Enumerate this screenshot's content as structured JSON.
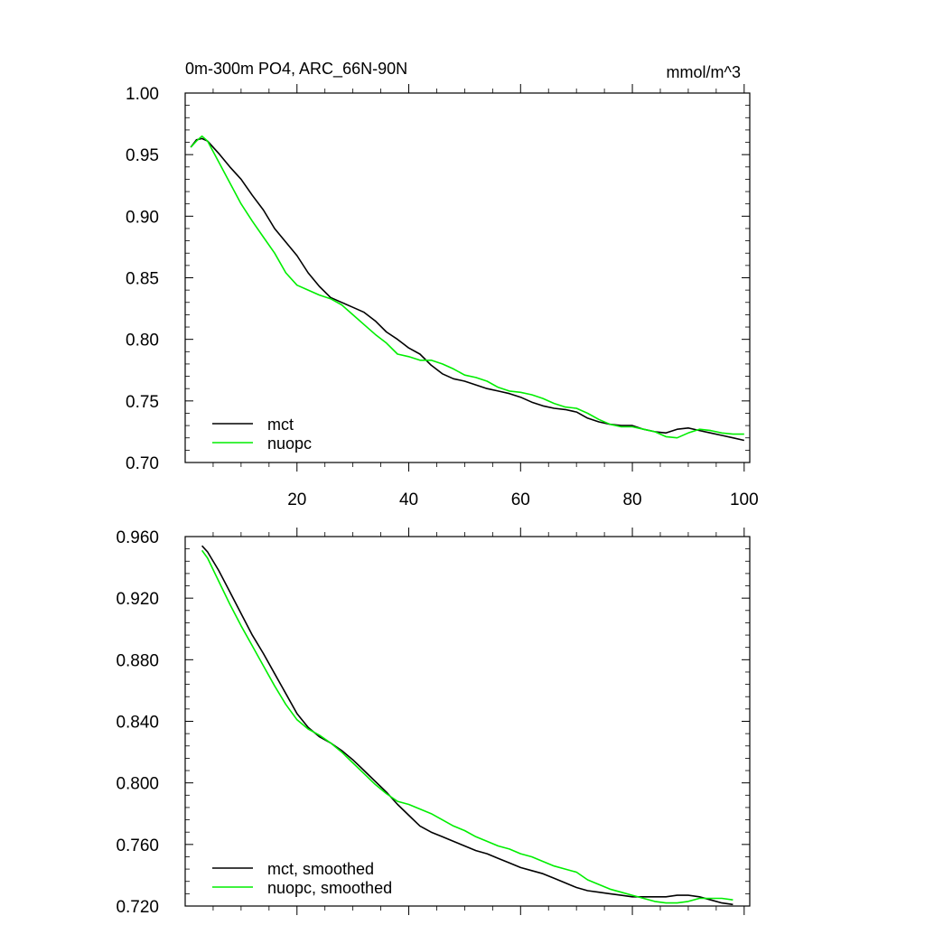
{
  "chart_data": [
    {
      "type": "line",
      "title": "0m-300m PO4, ARC_66N-90N",
      "units": "mmol/m^3",
      "xlim": [
        0,
        101
      ],
      "ylim": [
        0.7,
        1.0
      ],
      "x_ticks": [
        20,
        40,
        60,
        80,
        100
      ],
      "x_tick_labels": [
        "20",
        "40",
        "60",
        "80",
        "100"
      ],
      "y_ticks": [
        0.7,
        0.75,
        0.8,
        0.85,
        0.9,
        0.95,
        1.0
      ],
      "y_tick_labels": [
        "0.70",
        "0.75",
        "0.80",
        "0.85",
        "0.90",
        "0.95",
        "1.00"
      ],
      "legend_position": "bottom-left",
      "series": [
        {
          "name": "mct",
          "color": "#000000",
          "x": [
            1,
            2,
            3,
            4,
            6,
            8,
            10,
            12,
            14,
            16,
            18,
            20,
            22,
            24,
            26,
            28,
            30,
            32,
            34,
            36,
            38,
            40,
            42,
            44,
            46,
            48,
            50,
            52,
            54,
            56,
            58,
            60,
            62,
            64,
            66,
            68,
            70,
            72,
            74,
            76,
            78,
            80,
            82,
            84,
            86,
            88,
            90,
            92,
            94,
            96,
            98,
            100
          ],
          "values": [
            0.956,
            0.962,
            0.963,
            0.961,
            0.951,
            0.94,
            0.93,
            0.917,
            0.905,
            0.89,
            0.879,
            0.868,
            0.854,
            0.843,
            0.834,
            0.83,
            0.826,
            0.822,
            0.815,
            0.806,
            0.8,
            0.793,
            0.788,
            0.779,
            0.772,
            0.768,
            0.766,
            0.763,
            0.76,
            0.758,
            0.756,
            0.753,
            0.749,
            0.746,
            0.744,
            0.743,
            0.741,
            0.736,
            0.733,
            0.731,
            0.73,
            0.73,
            0.727,
            0.725,
            0.724,
            0.727,
            0.728,
            0.726,
            0.724,
            0.722,
            0.72,
            0.718
          ]
        },
        {
          "name": "nuopc",
          "color": "#00ee00",
          "x": [
            1,
            2,
            3,
            4,
            6,
            8,
            10,
            12,
            14,
            16,
            18,
            20,
            22,
            24,
            26,
            28,
            30,
            32,
            34,
            36,
            38,
            40,
            42,
            44,
            46,
            48,
            50,
            52,
            54,
            56,
            58,
            60,
            62,
            64,
            66,
            68,
            70,
            72,
            74,
            76,
            78,
            80,
            82,
            84,
            86,
            88,
            90,
            92,
            94,
            96,
            98,
            100
          ],
          "values": [
            0.956,
            0.961,
            0.965,
            0.961,
            0.944,
            0.927,
            0.91,
            0.896,
            0.883,
            0.87,
            0.854,
            0.844,
            0.84,
            0.836,
            0.833,
            0.828,
            0.82,
            0.812,
            0.804,
            0.797,
            0.788,
            0.786,
            0.783,
            0.783,
            0.78,
            0.776,
            0.771,
            0.769,
            0.766,
            0.761,
            0.758,
            0.757,
            0.755,
            0.752,
            0.748,
            0.745,
            0.744,
            0.74,
            0.735,
            0.731,
            0.729,
            0.729,
            0.727,
            0.725,
            0.721,
            0.72,
            0.724,
            0.727,
            0.726,
            0.724,
            0.723,
            0.723
          ]
        }
      ]
    },
    {
      "type": "line",
      "title": "",
      "xlim": [
        0,
        101
      ],
      "ylim": [
        0.72,
        0.96
      ],
      "x_ticks": [
        20,
        40,
        60,
        80,
        100
      ],
      "x_tick_labels": [
        "",
        "",
        "",
        "",
        ""
      ],
      "y_ticks": [
        0.72,
        0.76,
        0.8,
        0.84,
        0.88,
        0.92,
        0.96
      ],
      "y_tick_labels": [
        "0.720",
        "0.760",
        "0.800",
        "0.840",
        "0.880",
        "0.920",
        "0.960"
      ],
      "legend_position": "bottom-left",
      "series": [
        {
          "name": "mct, smoothed",
          "color": "#000000",
          "x": [
            3,
            4,
            6,
            8,
            10,
            12,
            14,
            16,
            18,
            20,
            22,
            24,
            26,
            28,
            30,
            32,
            34,
            36,
            38,
            40,
            42,
            44,
            46,
            48,
            50,
            52,
            54,
            56,
            58,
            60,
            62,
            64,
            66,
            68,
            70,
            72,
            74,
            76,
            78,
            80,
            82,
            84,
            86,
            88,
            90,
            92,
            94,
            96,
            98
          ],
          "values": [
            0.954,
            0.95,
            0.938,
            0.924,
            0.91,
            0.896,
            0.884,
            0.871,
            0.858,
            0.845,
            0.836,
            0.83,
            0.826,
            0.821,
            0.815,
            0.808,
            0.801,
            0.794,
            0.786,
            0.779,
            0.772,
            0.768,
            0.765,
            0.762,
            0.759,
            0.756,
            0.754,
            0.751,
            0.748,
            0.745,
            0.743,
            0.741,
            0.738,
            0.735,
            0.732,
            0.73,
            0.729,
            0.728,
            0.727,
            0.726,
            0.726,
            0.726,
            0.726,
            0.727,
            0.727,
            0.726,
            0.724,
            0.722,
            0.721
          ]
        },
        {
          "name": "nuopc, smoothed",
          "color": "#00ee00",
          "x": [
            3,
            4,
            6,
            8,
            10,
            12,
            14,
            16,
            18,
            20,
            22,
            24,
            26,
            28,
            30,
            32,
            34,
            36,
            38,
            40,
            42,
            44,
            46,
            48,
            50,
            52,
            54,
            56,
            58,
            60,
            62,
            64,
            66,
            68,
            70,
            72,
            74,
            76,
            78,
            80,
            82,
            84,
            86,
            88,
            90,
            92,
            94,
            96,
            98
          ],
          "values": [
            0.951,
            0.946,
            0.931,
            0.916,
            0.902,
            0.889,
            0.876,
            0.863,
            0.851,
            0.841,
            0.835,
            0.831,
            0.826,
            0.82,
            0.813,
            0.806,
            0.799,
            0.793,
            0.788,
            0.786,
            0.783,
            0.78,
            0.776,
            0.772,
            0.769,
            0.765,
            0.762,
            0.759,
            0.757,
            0.754,
            0.752,
            0.749,
            0.746,
            0.744,
            0.742,
            0.737,
            0.734,
            0.731,
            0.729,
            0.727,
            0.725,
            0.723,
            0.722,
            0.722,
            0.723,
            0.725,
            0.725,
            0.725,
            0.724
          ]
        }
      ]
    }
  ]
}
